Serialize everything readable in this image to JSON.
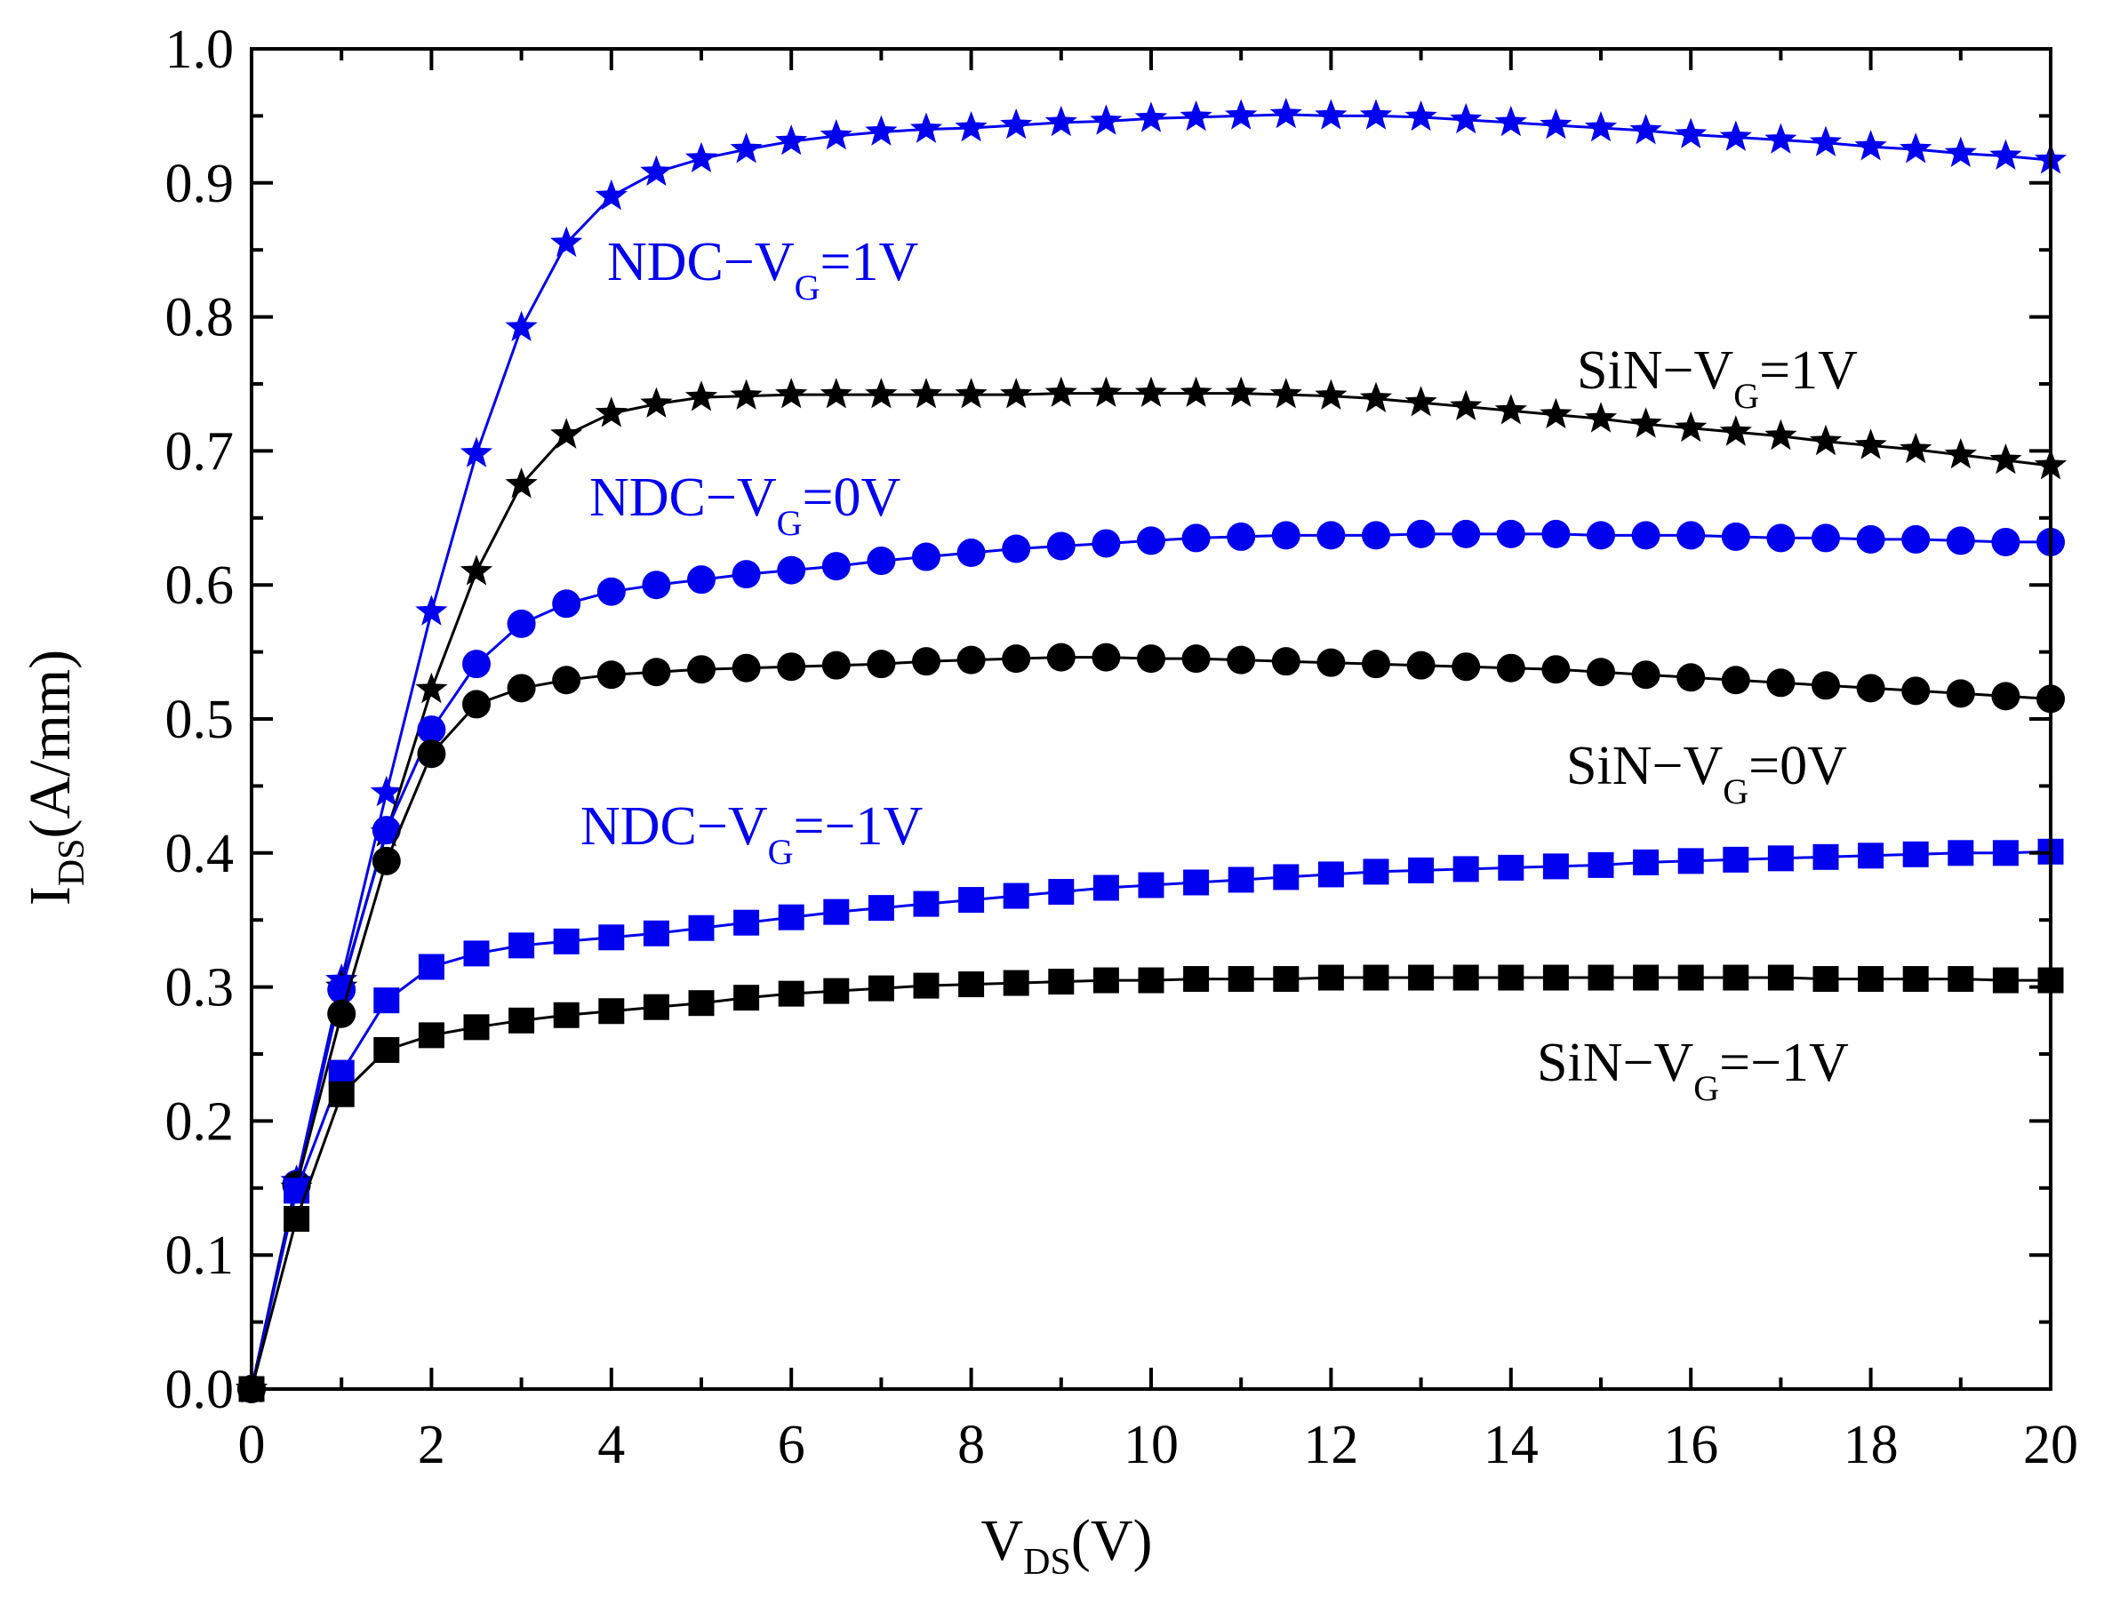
{
  "chart_data": {
    "type": "line",
    "title": "",
    "xlabel": "V",
    "xlabel_sub": "DS",
    "xlabel_unit": "(V)",
    "ylabel": "I",
    "ylabel_sub": "DS",
    "ylabel_unit": "(A/mm)",
    "xlim": [
      0,
      20
    ],
    "ylim": [
      0,
      1.0
    ],
    "x_ticks": [
      "0",
      "2",
      "4",
      "6",
      "8",
      "10",
      "12",
      "14",
      "16",
      "18",
      "20"
    ],
    "y_ticks": [
      "0.0",
      "0.1",
      "0.2",
      "0.3",
      "0.4",
      "0.5",
      "0.6",
      "0.7",
      "0.8",
      "0.9",
      "1.0"
    ],
    "grid": false,
    "x": [
      0,
      0.5,
      1,
      1.5,
      2,
      2.5,
      3,
      3.5,
      4,
      4.5,
      5,
      5.5,
      6,
      6.5,
      7,
      7.5,
      8,
      8.5,
      9,
      9.5,
      10,
      10.5,
      11,
      11.5,
      12,
      12.5,
      13,
      13.5,
      14,
      14.5,
      15,
      15.5,
      16,
      16.5,
      17,
      17.5,
      18,
      18.5,
      19,
      19.5,
      20
    ],
    "series": [
      {
        "name": "NDC-VG=1V",
        "label_main": "NDC−V",
        "label_sub": "G",
        "label_tail": "=1V",
        "color": "#0000ee",
        "marker": "star",
        "values": [
          0.0,
          0.155,
          0.305,
          0.445,
          0.58,
          0.698,
          0.792,
          0.855,
          0.89,
          0.908,
          0.918,
          0.925,
          0.931,
          0.935,
          0.938,
          0.94,
          0.941,
          0.943,
          0.945,
          0.946,
          0.948,
          0.949,
          0.95,
          0.951,
          0.95,
          0.95,
          0.949,
          0.947,
          0.945,
          0.943,
          0.941,
          0.939,
          0.936,
          0.934,
          0.932,
          0.93,
          0.927,
          0.925,
          0.922,
          0.92,
          0.917
        ]
      },
      {
        "name": "SiN-VG=1V",
        "label_main": "SiN−V",
        "label_sub": "G",
        "label_tail": "=1V",
        "color": "#000000",
        "marker": "star",
        "values": [
          0.0,
          0.15,
          0.3,
          0.415,
          0.522,
          0.61,
          0.675,
          0.712,
          0.728,
          0.735,
          0.74,
          0.741,
          0.742,
          0.742,
          0.742,
          0.742,
          0.742,
          0.742,
          0.743,
          0.743,
          0.743,
          0.743,
          0.743,
          0.742,
          0.741,
          0.739,
          0.736,
          0.733,
          0.73,
          0.727,
          0.724,
          0.72,
          0.717,
          0.714,
          0.711,
          0.707,
          0.704,
          0.701,
          0.697,
          0.693,
          0.689
        ]
      },
      {
        "name": "NDC-VG=0V",
        "label_main": "NDC−V",
        "label_sub": "G",
        "label_tail": "=0V",
        "color": "#0000ee",
        "marker": "circle",
        "values": [
          0.0,
          0.153,
          0.298,
          0.417,
          0.492,
          0.541,
          0.571,
          0.586,
          0.595,
          0.6,
          0.604,
          0.608,
          0.611,
          0.614,
          0.618,
          0.621,
          0.624,
          0.627,
          0.629,
          0.631,
          0.633,
          0.635,
          0.636,
          0.637,
          0.637,
          0.637,
          0.638,
          0.638,
          0.638,
          0.638,
          0.637,
          0.637,
          0.637,
          0.636,
          0.635,
          0.635,
          0.634,
          0.634,
          0.633,
          0.632,
          0.632
        ]
      },
      {
        "name": "SiN-VG=0V",
        "label_main": "SiN−V",
        "label_sub": "G",
        "label_tail": "=0V",
        "color": "#000000",
        "marker": "circle",
        "values": [
          0.0,
          0.152,
          0.28,
          0.394,
          0.474,
          0.511,
          0.523,
          0.529,
          0.533,
          0.535,
          0.537,
          0.538,
          0.539,
          0.54,
          0.541,
          0.543,
          0.544,
          0.545,
          0.546,
          0.546,
          0.545,
          0.545,
          0.544,
          0.543,
          0.542,
          0.541,
          0.54,
          0.539,
          0.538,
          0.537,
          0.535,
          0.533,
          0.531,
          0.529,
          0.527,
          0.525,
          0.523,
          0.521,
          0.519,
          0.517,
          0.515
        ]
      },
      {
        "name": "NDC-VG=-1V",
        "label_main": "NDC−V",
        "label_sub": "G",
        "label_tail": "=−1V",
        "color": "#0000ee",
        "marker": "square",
        "values": [
          0.0,
          0.148,
          0.236,
          0.29,
          0.315,
          0.325,
          0.331,
          0.334,
          0.337,
          0.34,
          0.344,
          0.348,
          0.352,
          0.356,
          0.359,
          0.362,
          0.365,
          0.368,
          0.371,
          0.374,
          0.376,
          0.378,
          0.38,
          0.382,
          0.384,
          0.386,
          0.387,
          0.388,
          0.389,
          0.39,
          0.391,
          0.393,
          0.394,
          0.395,
          0.396,
          0.397,
          0.398,
          0.399,
          0.4,
          0.4,
          0.401
        ]
      },
      {
        "name": "SiN-VG=-1V",
        "label_main": "SiN−V",
        "label_sub": "G",
        "label_tail": "=−1V",
        "color": "#000000",
        "marker": "square",
        "values": [
          0.0,
          0.127,
          0.22,
          0.253,
          0.264,
          0.27,
          0.275,
          0.279,
          0.282,
          0.285,
          0.288,
          0.292,
          0.295,
          0.297,
          0.299,
          0.301,
          0.302,
          0.303,
          0.304,
          0.305,
          0.305,
          0.306,
          0.306,
          0.306,
          0.307,
          0.307,
          0.307,
          0.307,
          0.307,
          0.307,
          0.307,
          0.307,
          0.307,
          0.307,
          0.307,
          0.306,
          0.306,
          0.306,
          0.306,
          0.305,
          0.305
        ]
      }
    ]
  }
}
